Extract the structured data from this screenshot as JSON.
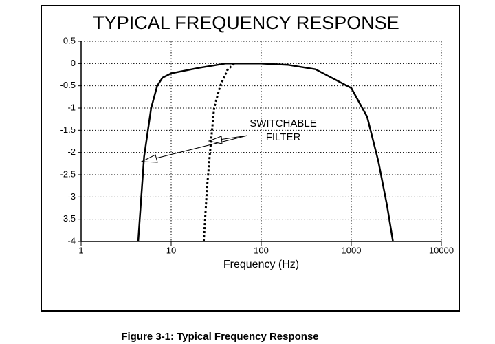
{
  "chart_data": {
    "type": "line",
    "title": "TYPICAL FREQUENCY RESPONSE",
    "x_label": "Frequency (Hz)",
    "x_log_scale": true,
    "grid": true,
    "xlim": [
      1,
      10000
    ],
    "xticks": [
      1,
      10,
      100,
      1000,
      10000
    ],
    "ylim": [
      -4,
      0.5
    ],
    "yticks": [
      0.5,
      0,
      -0.5,
      -1,
      -1.5,
      -2,
      -2.5,
      -3,
      -3.5,
      -4
    ],
    "series": [
      {
        "color": "#000000",
        "line_style": "solid",
        "x": [
          4.3,
          5,
          6,
          7,
          8,
          10,
          20,
          40,
          100,
          200,
          400,
          1000,
          1500,
          2000,
          2500,
          2900
        ],
        "values": [
          -4,
          -2.1,
          -1,
          -0.5,
          -0.32,
          -0.22,
          -0.1,
          0,
          0,
          -0.03,
          -0.13,
          -0.55,
          -1.2,
          -2.2,
          -3.2,
          -4
        ]
      },
      {
        "color": "#000000",
        "line_style": "dotted",
        "x": [
          23,
          25,
          27,
          30,
          35,
          42,
          50
        ],
        "values": [
          -4,
          -2.8,
          -2,
          -1,
          -0.5,
          -0.15,
          0
        ]
      }
    ],
    "annotation": [
      "SWITCHABLE",
      "FILTER"
    ],
    "caption": "Figure 3-1: Typical Frequency Response"
  }
}
